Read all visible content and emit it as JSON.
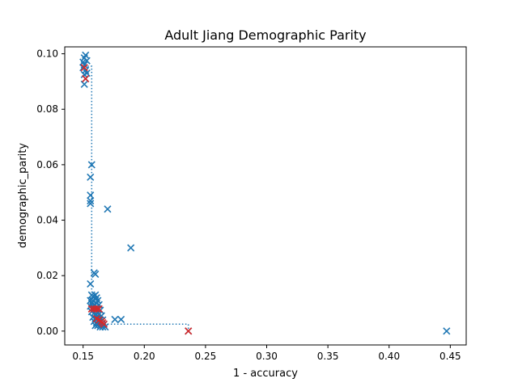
{
  "chart_data": {
    "type": "scatter",
    "title": "Adult Jiang Demographic Parity",
    "xlabel": "1 - accuracy",
    "ylabel": "demographic_parity",
    "xlim": [
      0.135,
      0.463
    ],
    "ylim": [
      -0.005,
      0.1025
    ],
    "x_ticks": [
      0.15,
      0.2,
      0.25,
      0.3,
      0.35,
      0.4,
      0.45
    ],
    "x_tick_labels": [
      "0.15",
      "0.20",
      "0.25",
      "0.30",
      "0.35",
      "0.40",
      "0.45"
    ],
    "y_ticks": [
      0.0,
      0.02,
      0.04,
      0.06,
      0.08,
      0.1
    ],
    "y_tick_labels": [
      "0.00",
      "0.02",
      "0.04",
      "0.06",
      "0.08",
      "0.10"
    ],
    "grid": false,
    "legend": "none",
    "colors": {
      "all_points": "#1f77b4",
      "pareto_points": "#d62728",
      "frontier_line": "#1f77b4"
    },
    "marker": "x",
    "series": [
      {
        "role": "all-models",
        "points": [
          [
            0.15,
            0.097
          ],
          [
            0.151,
            0.0985
          ],
          [
            0.152,
            0.0995
          ],
          [
            0.151,
            0.096
          ],
          [
            0.153,
            0.0975
          ],
          [
            0.15,
            0.095
          ],
          [
            0.152,
            0.094
          ],
          [
            0.151,
            0.0925
          ],
          [
            0.153,
            0.093
          ],
          [
            0.152,
            0.091
          ],
          [
            0.151,
            0.089
          ],
          [
            0.157,
            0.06
          ],
          [
            0.156,
            0.0555
          ],
          [
            0.156,
            0.049
          ],
          [
            0.156,
            0.047
          ],
          [
            0.156,
            0.046
          ],
          [
            0.17,
            0.044
          ],
          [
            0.189,
            0.03
          ],
          [
            0.159,
            0.021
          ],
          [
            0.16,
            0.0205
          ],
          [
            0.156,
            0.017
          ],
          [
            0.157,
            0.013
          ],
          [
            0.158,
            0.0125
          ],
          [
            0.16,
            0.013
          ],
          [
            0.161,
            0.012
          ],
          [
            0.156,
            0.011
          ],
          [
            0.158,
            0.011
          ],
          [
            0.16,
            0.0115
          ],
          [
            0.162,
            0.011
          ],
          [
            0.157,
            0.01
          ],
          [
            0.159,
            0.0095
          ],
          [
            0.161,
            0.01
          ],
          [
            0.163,
            0.0095
          ],
          [
            0.156,
            0.009
          ],
          [
            0.158,
            0.0085
          ],
          [
            0.16,
            0.008
          ],
          [
            0.162,
            0.008
          ],
          [
            0.164,
            0.0075
          ],
          [
            0.157,
            0.007
          ],
          [
            0.159,
            0.0065
          ],
          [
            0.161,
            0.006
          ],
          [
            0.163,
            0.006
          ],
          [
            0.165,
            0.0055
          ],
          [
            0.158,
            0.005
          ],
          [
            0.16,
            0.0045
          ],
          [
            0.162,
            0.0045
          ],
          [
            0.164,
            0.004
          ],
          [
            0.166,
            0.004
          ],
          [
            0.159,
            0.0035
          ],
          [
            0.161,
            0.003
          ],
          [
            0.163,
            0.003
          ],
          [
            0.165,
            0.0025
          ],
          [
            0.167,
            0.0025
          ],
          [
            0.16,
            0.002
          ],
          [
            0.162,
            0.002
          ],
          [
            0.164,
            0.0015
          ],
          [
            0.166,
            0.0015
          ],
          [
            0.168,
            0.0015
          ],
          [
            0.176,
            0.0042
          ],
          [
            0.181,
            0.0042
          ],
          [
            0.236,
            0.0
          ],
          [
            0.447,
            0.0
          ]
        ]
      },
      {
        "role": "pareto-optimal",
        "points": [
          [
            0.151,
            0.095
          ],
          [
            0.152,
            0.091
          ],
          [
            0.157,
            0.008
          ],
          [
            0.159,
            0.008
          ],
          [
            0.161,
            0.008
          ],
          [
            0.163,
            0.008
          ],
          [
            0.161,
            0.0045
          ],
          [
            0.163,
            0.004
          ],
          [
            0.165,
            0.0035
          ],
          [
            0.166,
            0.003
          ],
          [
            0.167,
            0.0025
          ],
          [
            0.236,
            0.0
          ]
        ]
      }
    ],
    "frontier_line": {
      "style": "dotted",
      "points": [
        [
          0.151,
          0.0955
        ],
        [
          0.157,
          0.0955
        ],
        [
          0.157,
          0.008
        ],
        [
          0.161,
          0.008
        ],
        [
          0.161,
          0.005
        ],
        [
          0.163,
          0.005
        ],
        [
          0.163,
          0.004
        ],
        [
          0.166,
          0.004
        ],
        [
          0.166,
          0.0025
        ],
        [
          0.236,
          0.0025
        ],
        [
          0.236,
          0.0
        ]
      ]
    }
  }
}
